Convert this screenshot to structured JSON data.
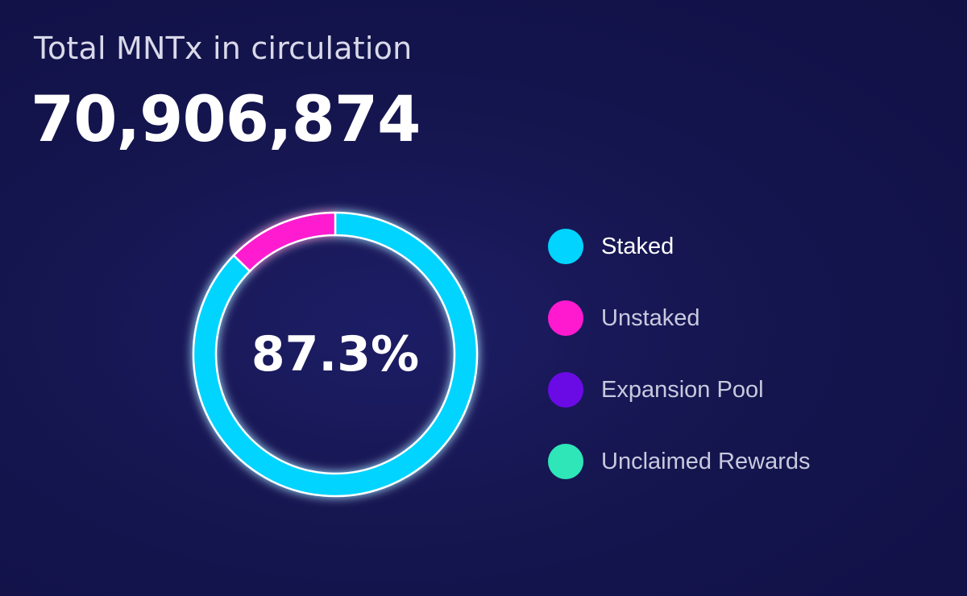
{
  "header": {
    "title": "Total MNTx in circulation",
    "total": "70,906,874"
  },
  "chart_data": {
    "type": "pie",
    "variant": "donut",
    "center_label": "87.3%",
    "series": [
      {
        "name": "Staked",
        "value": 87.3,
        "color": "#00d4ff"
      },
      {
        "name": "Unstaked",
        "value": 12.7,
        "color": "#ff1ad0"
      },
      {
        "name": "Expansion Pool",
        "value": 0,
        "color": "#6a0be6"
      },
      {
        "name": "Unclaimed Rewards",
        "value": 0,
        "color": "#2ee6b8"
      }
    ],
    "legend_position": "right",
    "slice_border_color": "#ffffff"
  }
}
